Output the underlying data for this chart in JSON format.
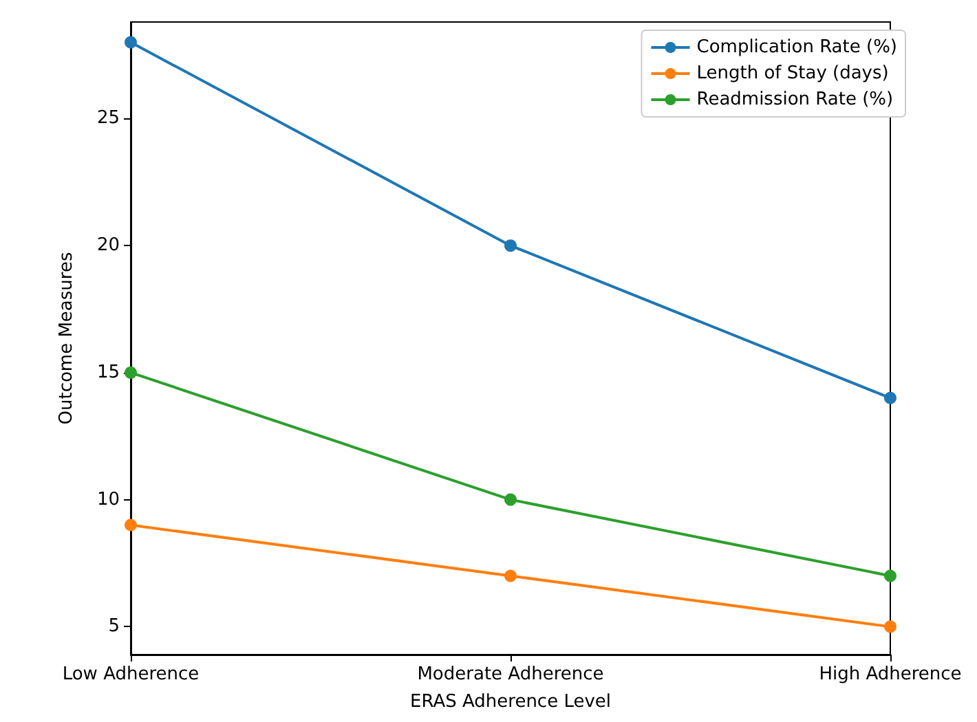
{
  "chart_data": {
    "type": "line",
    "xlabel": "ERAS Adherence Level",
    "ylabel": "Outcome Measures",
    "categories": [
      "Low Adherence",
      "Moderate Adherence",
      "High Adherence"
    ],
    "series": [
      {
        "name": "Complication Rate (%)",
        "color": "#1f77b4",
        "values": [
          28,
          20,
          14
        ]
      },
      {
        "name": "Length of Stay (days)",
        "color": "#ff7f0e",
        "values": [
          9,
          7,
          5
        ]
      },
      {
        "name": "Readmission Rate (%)",
        "color": "#2ca02c",
        "values": [
          15,
          10,
          7
        ]
      }
    ],
    "ylim": [
      3.9,
      28.8
    ],
    "yticks": [
      5,
      10,
      15,
      20,
      25
    ],
    "marker": "circle",
    "legend": "top right",
    "grid": false
  }
}
